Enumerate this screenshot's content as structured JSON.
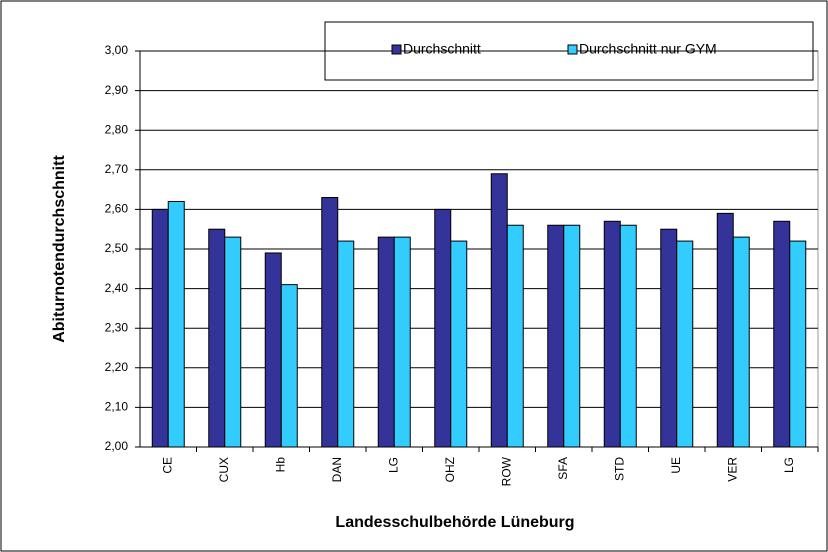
{
  "chart_data": {
    "type": "bar",
    "x_label": "Landesschulbehörde Lüneburg",
    "y_label": "Abiturnotendurchschnitt",
    "categories": [
      "CE",
      "CUX",
      "Hb",
      "DAN",
      "LG",
      "OHZ",
      "ROW",
      "SFA",
      "STD",
      "UE",
      "VER",
      "LG"
    ],
    "series": [
      {
        "name": "Durchschnitt",
        "color": "#333399",
        "values": [
          2.6,
          2.55,
          2.49,
          2.63,
          2.53,
          2.6,
          2.69,
          2.56,
          2.57,
          2.55,
          2.59,
          2.57
        ]
      },
      {
        "name": "Durchschnitt  nur GYM",
        "color": "#33ccff",
        "values": [
          2.62,
          2.53,
          2.41,
          2.52,
          2.53,
          2.52,
          2.56,
          2.56,
          2.56,
          2.52,
          2.53,
          2.52
        ]
      }
    ],
    "ylim": [
      2.0,
      3.0
    ],
    "yticks": [
      {
        "value": 2.0,
        "label": "2,00"
      },
      {
        "value": 2.1,
        "label": "2,10"
      },
      {
        "value": 2.2,
        "label": "2,20"
      },
      {
        "value": 2.3,
        "label": "2,30"
      },
      {
        "value": 2.4,
        "label": "2,40"
      },
      {
        "value": 2.5,
        "label": "2,50"
      },
      {
        "value": 2.6,
        "label": "2,60"
      },
      {
        "value": 2.7,
        "label": "2,70"
      },
      {
        "value": 2.8,
        "label": "2,80"
      },
      {
        "value": 2.9,
        "label": "2,90"
      },
      {
        "value": 3.0,
        "label": "3,00"
      }
    ],
    "grid": true,
    "legend": "top-right"
  }
}
